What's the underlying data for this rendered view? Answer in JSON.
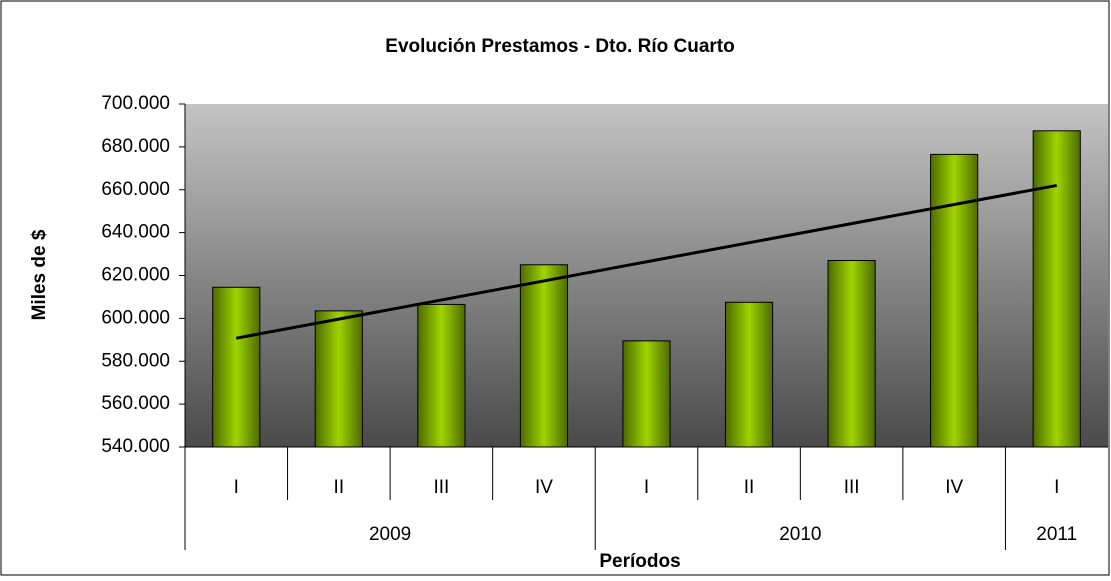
{
  "chart_data": {
    "type": "bar",
    "title": "Evolución Prestamos - Dto. Río Cuarto",
    "y_label": "Miles de $",
    "x_label": "Períodos",
    "groups": [
      {
        "label": "2009",
        "categories": [
          "I",
          "II",
          "III",
          "IV"
        ]
      },
      {
        "label": "2010",
        "categories": [
          "I",
          "II",
          "III",
          "IV"
        ]
      },
      {
        "label": "2011",
        "categories": [
          "I"
        ]
      }
    ],
    "values": [
      614500,
      603500,
      606500,
      625000,
      589500,
      607500,
      627000,
      676500,
      687500
    ],
    "color": "#8fc400",
    "trendline": "linear",
    "ylim": [
      540000,
      700000
    ],
    "yticks": [
      {
        "value": 540000,
        "label": "540.000"
      },
      {
        "value": 560000,
        "label": "560.000"
      },
      {
        "value": 580000,
        "label": "580.000"
      },
      {
        "value": 600000,
        "label": "600.000"
      },
      {
        "value": 620000,
        "label": "620.000"
      },
      {
        "value": 640000,
        "label": "640.000"
      },
      {
        "value": 660000,
        "label": "660.000"
      },
      {
        "value": 680000,
        "label": "680.000"
      },
      {
        "value": 700000,
        "label": "700.000"
      }
    ],
    "grid": false
  }
}
